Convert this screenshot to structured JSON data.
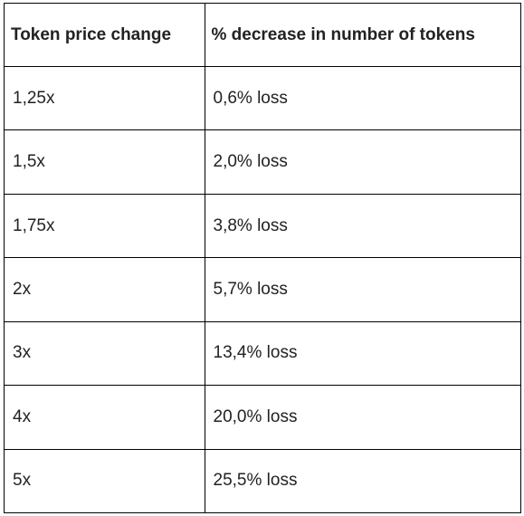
{
  "table": {
    "headers": [
      "Token price change",
      "% decrease in number of tokens"
    ],
    "rows": [
      [
        "1,25x",
        "0,6% loss"
      ],
      [
        "1,5x",
        "2,0% loss"
      ],
      [
        "1,75x",
        "3,8% loss"
      ],
      [
        "2x",
        "5,7% loss"
      ],
      [
        "3x",
        "13,4% loss"
      ],
      [
        "4x",
        "20,0% loss"
      ],
      [
        "5x",
        "25,5% loss"
      ]
    ]
  }
}
